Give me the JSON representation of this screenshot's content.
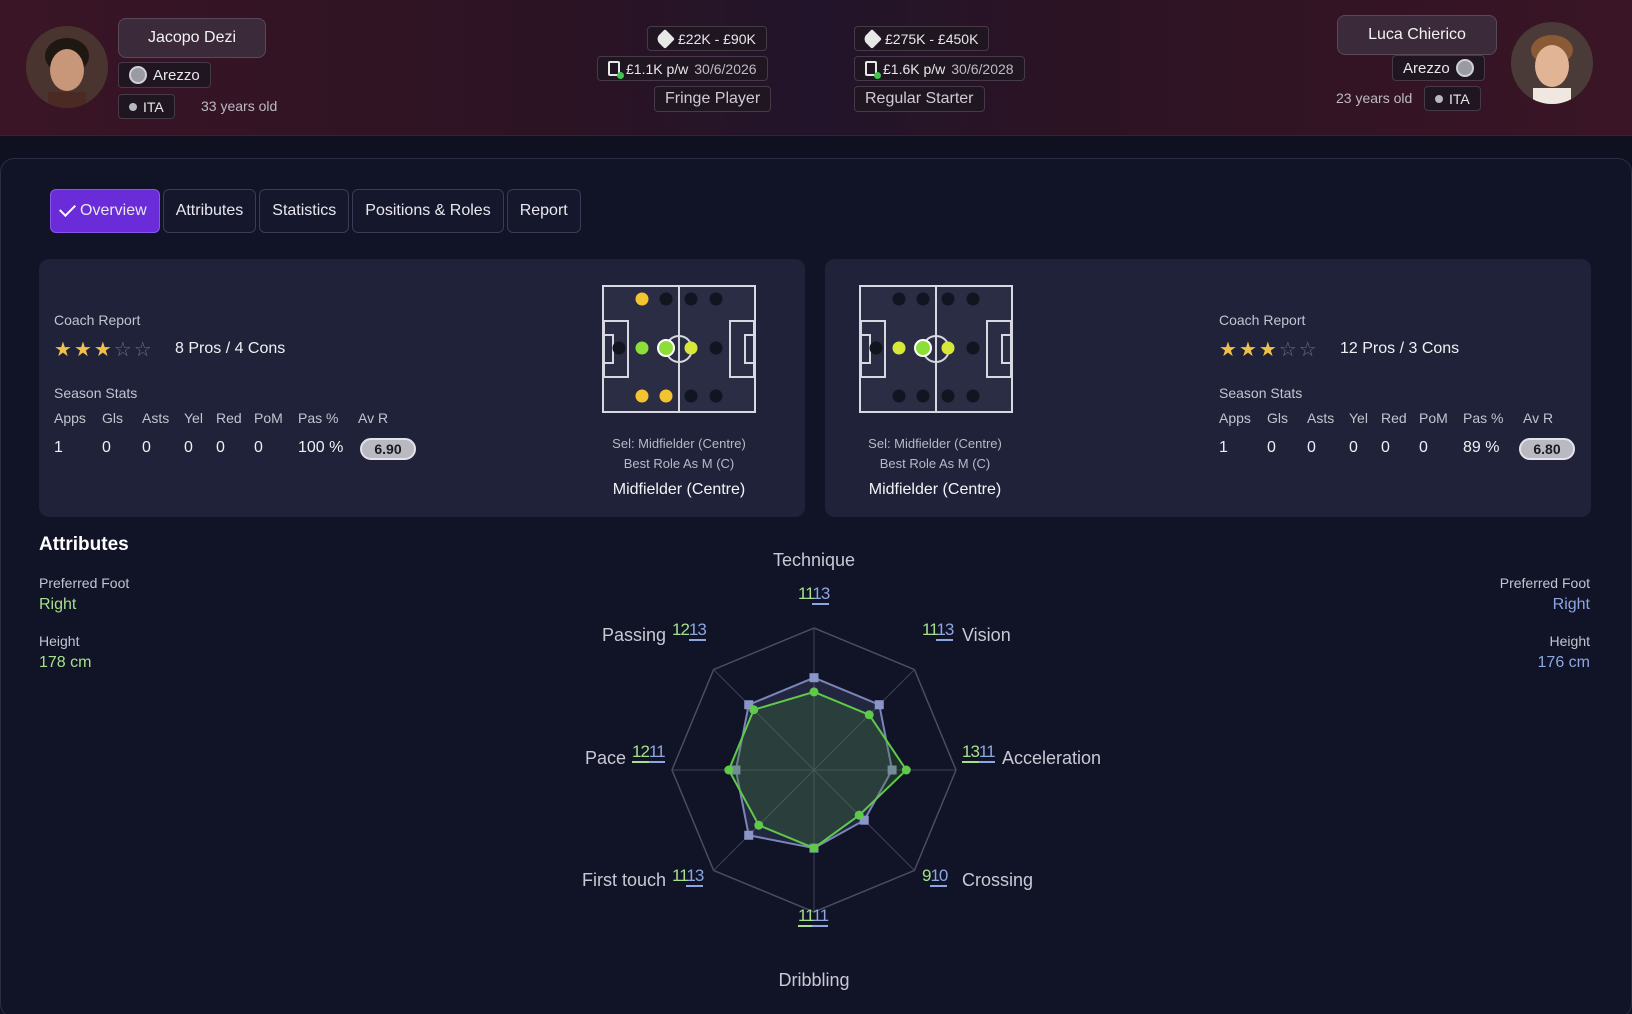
{
  "left_player": {
    "name": "Jacopo Dezi",
    "club": "Arezzo",
    "nation": "ITA",
    "age": "33 years old",
    "value": "£22K - £90K",
    "wage": "£1.1K p/w",
    "contract_end": "30/6/2026",
    "status": "Fringe Player",
    "coach_report_label": "Coach Report",
    "stars": 3,
    "pros_cons": "8 Pros / 4 Cons",
    "season_stats_label": "Season Stats",
    "stat_headers": [
      "Apps",
      "Gls",
      "Asts",
      "Yel",
      "Red",
      "PoM",
      "Pas %",
      "Av R"
    ],
    "stat_values": [
      "1",
      "0",
      "0",
      "0",
      "0",
      "0",
      "100 %"
    ],
    "avr": "6.90",
    "sel_role": "Sel: Midfielder (Centre)",
    "best_role": "Best Role As M (C)",
    "position": "Midfielder (Centre)",
    "preferred_foot_label": "Preferred Foot",
    "preferred_foot": "Right",
    "height_label": "Height",
    "height": "178 cm"
  },
  "right_player": {
    "name": "Luca Chierico",
    "club": "Arezzo",
    "nation": "ITA",
    "age": "23 years old",
    "value": "£275K - £450K",
    "wage": "£1.6K p/w",
    "contract_end": "30/6/2028",
    "status": "Regular Starter",
    "coach_report_label": "Coach Report",
    "stars": 3,
    "pros_cons": "12 Pros / 3 Cons",
    "season_stats_label": "Season Stats",
    "stat_headers": [
      "Apps",
      "Gls",
      "Asts",
      "Yel",
      "Red",
      "PoM",
      "Pas %",
      "Av R"
    ],
    "stat_values": [
      "1",
      "0",
      "0",
      "0",
      "0",
      "0",
      "89 %"
    ],
    "avr": "6.80",
    "sel_role": "Sel: Midfielder (Centre)",
    "best_role": "Best Role As M (C)",
    "position": "Midfielder (Centre)",
    "preferred_foot_label": "Preferred Foot",
    "preferred_foot": "Right",
    "height_label": "Height",
    "height": "176 cm"
  },
  "tabs": [
    "Overview",
    "Attributes",
    "Statistics",
    "Positions & Roles",
    "Report"
  ],
  "attributes_title": "Attributes",
  "radar": {
    "max": 20,
    "axes": [
      {
        "name": "Technique",
        "left": 11,
        "right": 13
      },
      {
        "name": "Vision",
        "left": 11,
        "right": 13
      },
      {
        "name": "Acceleration",
        "left": 13,
        "right": 11
      },
      {
        "name": "Crossing",
        "left": 9,
        "right": 10
      },
      {
        "name": "Dribbling",
        "left": 11,
        "right": 11
      },
      {
        "name": "First touch",
        "left": 11,
        "right": 13
      },
      {
        "name": "Pace",
        "left": 12,
        "right": 11
      },
      {
        "name": "Passing",
        "left": 12,
        "right": 13
      }
    ],
    "colors": {
      "left": "#5fc94a",
      "right": "#8ea6e0"
    }
  }
}
